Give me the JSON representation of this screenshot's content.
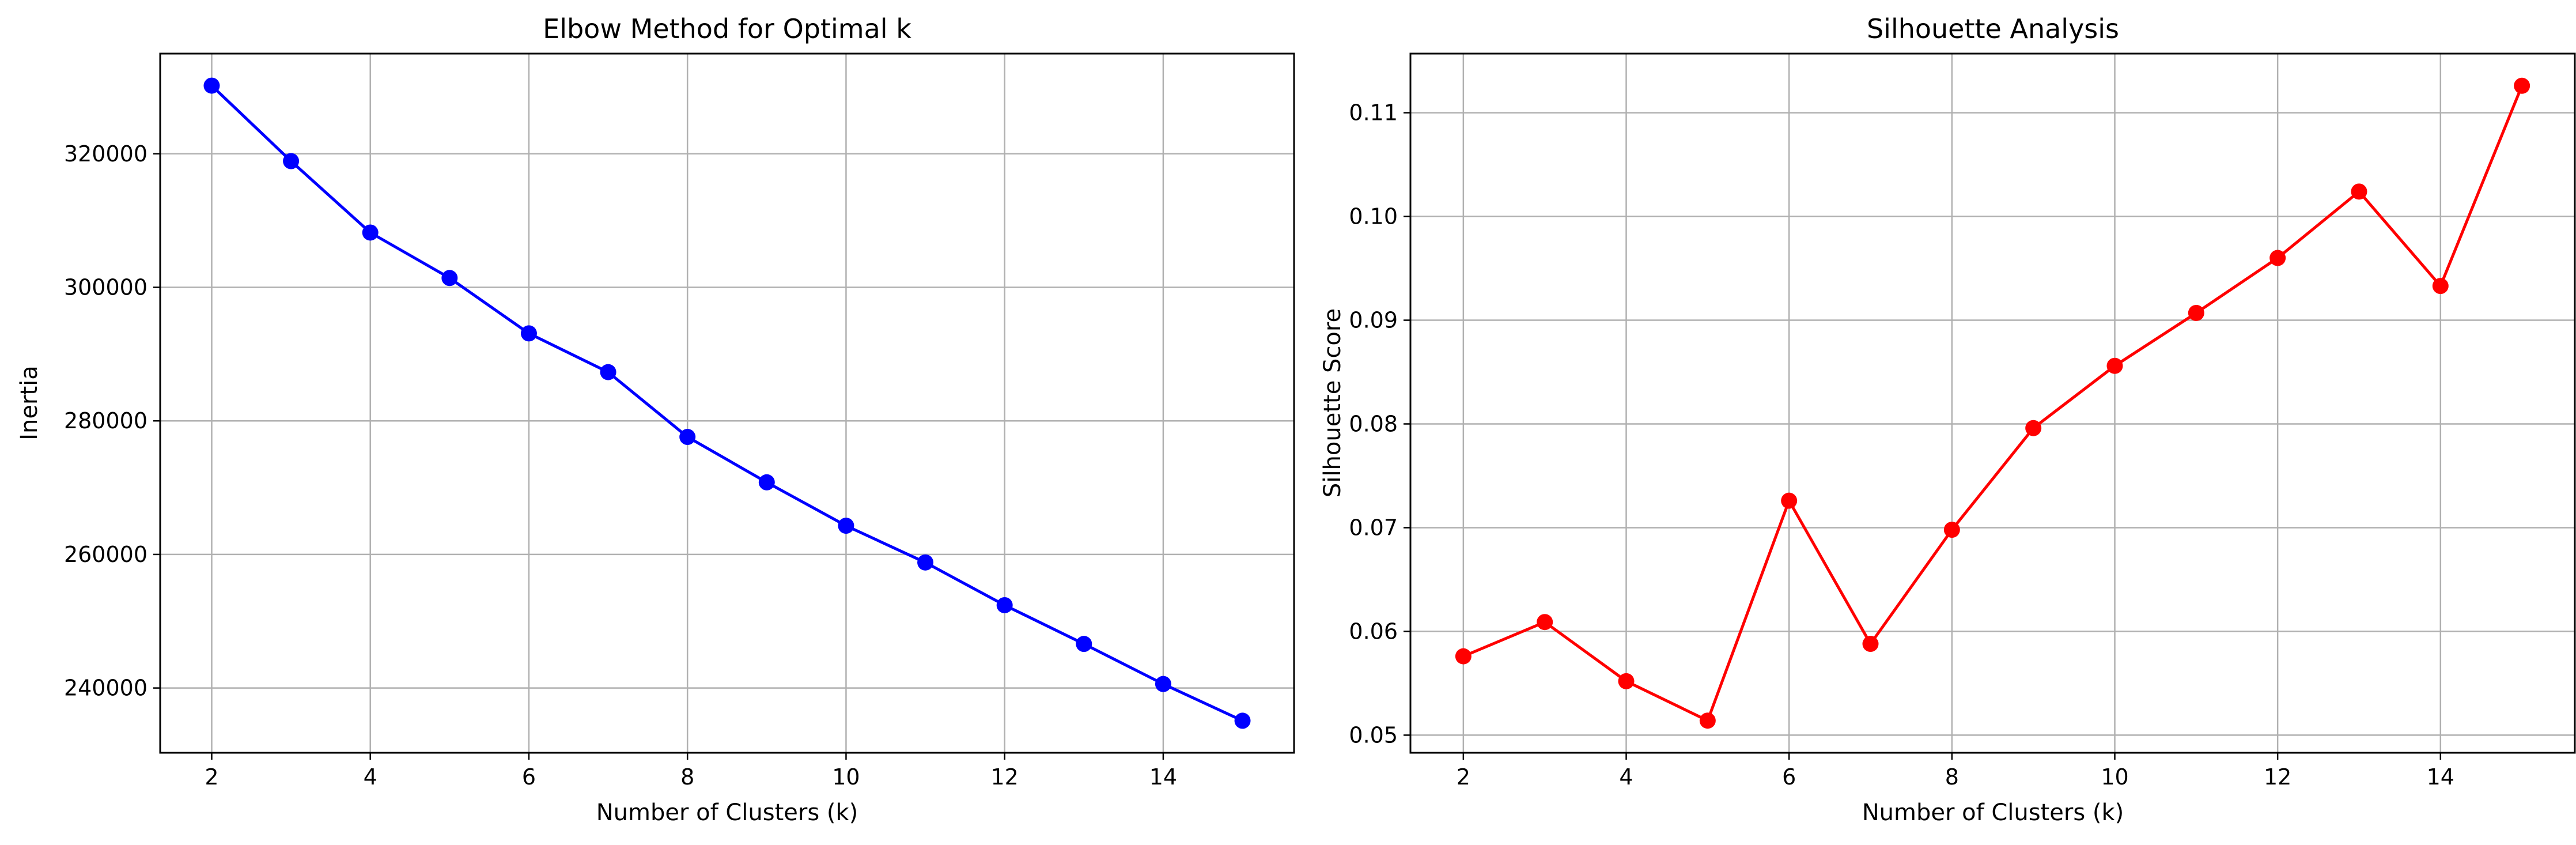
{
  "chart_data": [
    {
      "type": "line",
      "title": "Elbow Method for Optimal k",
      "xlabel": "Number of Clusters (k)",
      "ylabel": "Inertia",
      "x": [
        2,
        3,
        4,
        5,
        6,
        7,
        8,
        9,
        10,
        11,
        12,
        13,
        14,
        15
      ],
      "series": [
        {
          "values": [
            330200,
            318900,
            308200,
            301400,
            293100,
            287300,
            277600,
            270800,
            264300,
            258800,
            252400,
            246600,
            240600,
            235100
          ]
        }
      ],
      "xlim": [
        1.35,
        15.65
      ],
      "ylim": [
        230300,
        335000
      ],
      "xticks": [
        2,
        4,
        6,
        8,
        10,
        12,
        14
      ],
      "yticks": [
        240000,
        260000,
        280000,
        300000,
        320000
      ],
      "ytick_labels": [
        "240000",
        "260000",
        "280000",
        "300000",
        "320000"
      ],
      "grid": true,
      "color": "#0000ff",
      "marker": "circle"
    },
    {
      "type": "line",
      "title": "Silhouette Analysis",
      "xlabel": "Number of Clusters (k)",
      "ylabel": "Silhouette Score",
      "x": [
        2,
        3,
        4,
        5,
        6,
        7,
        8,
        9,
        10,
        11,
        12,
        13,
        14,
        15
      ],
      "series": [
        {
          "values": [
            0.0576,
            0.0609,
            0.0552,
            0.0514,
            0.0726,
            0.0588,
            0.0698,
            0.0796,
            0.0856,
            0.0907,
            0.096,
            0.1024,
            0.0933,
            0.1126
          ]
        }
      ],
      "xlim": [
        1.35,
        15.65
      ],
      "ylim": [
        0.0483,
        0.1157
      ],
      "xticks": [
        2,
        4,
        6,
        8,
        10,
        12,
        14
      ],
      "yticks": [
        0.05,
        0.06,
        0.07,
        0.08,
        0.09,
        0.1,
        0.11
      ],
      "ytick_labels": [
        "0.05",
        "0.06",
        "0.07",
        "0.08",
        "0.09",
        "0.10",
        "0.11"
      ],
      "grid": true,
      "color": "#ff0000",
      "marker": "circle"
    }
  ]
}
